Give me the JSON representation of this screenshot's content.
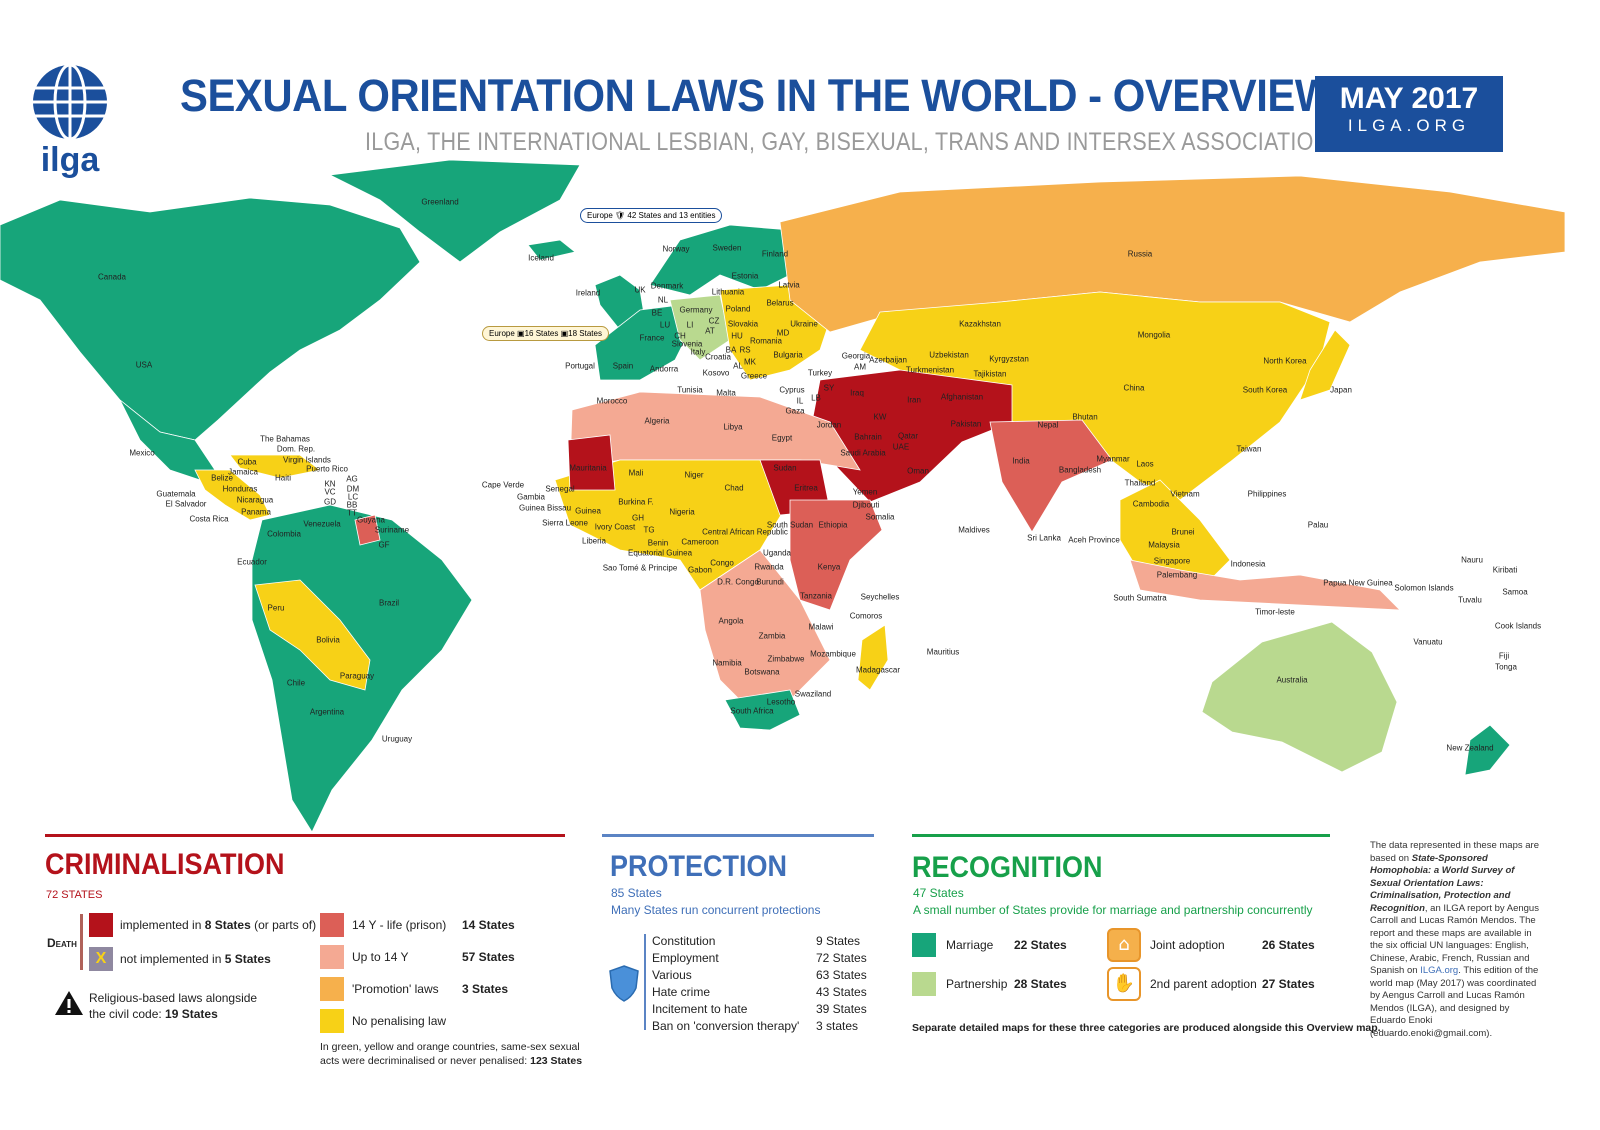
{
  "header": {
    "title": "SEXUAL ORIENTATION LAWS IN THE WORLD - OVERVIEW",
    "subtitle": "ILGA, THE INTERNATIONAL LESBIAN, GAY, BISEXUAL, TRANS AND INTERSEX ASSOCIATION",
    "date": "MAY 2017",
    "site": "ILGA.ORG",
    "logo_text": "ilga"
  },
  "colors": {
    "brand_blue": "#1b4f9c",
    "marriage": "#17a57a",
    "partnership": "#b9d98f",
    "no_penalising": "#f7d117",
    "promotion": "#f6b04c",
    "up_to_14": "#f4a993",
    "prison_14_life": "#dc5f57",
    "death": "#b4121b",
    "death_not_impl": "#8f88a0"
  },
  "callouts": {
    "europe_protection": "Europe 🛡 42 States and 13 entities",
    "europe_adoption": "Europe ▣16 States ▣18 States"
  },
  "map_labels": [
    "Greenland",
    "Canada",
    "USA",
    "Mexico",
    "Iceland",
    "Norway",
    "Sweden",
    "Finland",
    "Russia",
    "Estonia",
    "Latvia",
    "Lithuania",
    "Denmark",
    "UK",
    "Ireland",
    "NL",
    "BE",
    "LU",
    "Germany",
    "Poland",
    "Belarus",
    "Ukraine",
    "CZ",
    "Slovakia",
    "LI",
    "AT",
    "HU",
    "CH",
    "France",
    "Slovenia",
    "Romania",
    "MD",
    "Italy",
    "Croatia",
    "BA",
    "RS",
    "MK",
    "AL",
    "Kosovo",
    "Bulgaria",
    "Greece",
    "Spain",
    "Portugal",
    "Andorra",
    "Malta",
    "Turkey",
    "Georgia",
    "AM",
    "Azerbaijan",
    "Kazakhstan",
    "Uzbekistan",
    "Turkmenistan",
    "Kyrgyzstan",
    "Tajikistan",
    "Mongolia",
    "China",
    "North Korea",
    "South Korea",
    "Japan",
    "Cyprus",
    "SY",
    "LB",
    "IL",
    "Gaza",
    "Iraq",
    "Iran",
    "Afghanistan",
    "Pakistan",
    "KW",
    "Jordan",
    "Bahrain",
    "Qatar",
    "Saudi Arabia",
    "UAE",
    "Oman",
    "Yemen",
    "India",
    "Nepal",
    "Bhutan",
    "Bangladesh",
    "Myanmar",
    "Laos",
    "Thailand",
    "Vietnam",
    "Cambodia",
    "Taiwan",
    "Philippines",
    "Palau",
    "Maldives",
    "Sri Lanka",
    "Aceh Province",
    "Brunei",
    "Malaysia",
    "Singapore",
    "Palembang",
    "South Sumatra",
    "Indonesia",
    "Papua New Guinea",
    "Timor-leste",
    "Solomon Islands",
    "Nauru",
    "Kiribati",
    "Samoa",
    "Tuvalu",
    "Cook Islands",
    "Vanuatu",
    "Fiji",
    "Tonga",
    "Australia",
    "New Zealand",
    "Morocco",
    "Tunisia",
    "Algeria",
    "Libya",
    "Egypt",
    "Mauritania",
    "Mali",
    "Niger",
    "Chad",
    "Sudan",
    "Eritrea",
    "Djibouti",
    "Somalia",
    "Ethiopia",
    "Senegal",
    "Gambia",
    "Guinea Bissau",
    "Guinea",
    "Sierra Leone",
    "Liberia",
    "Ivory Coast",
    "Burkina F.",
    "GH",
    "TG",
    "Benin",
    "Nigeria",
    "Cameroon",
    "Central African Republic",
    "South Sudan",
    "Equatorial Guinea",
    "Sao Tomé & Principe",
    "Gabon",
    "Congo",
    "Uganda",
    "Kenya",
    "Rwanda",
    "Burundi",
    "D.R. Congo",
    "Tanzania",
    "Seychelles",
    "Comoros",
    "Angola",
    "Malawi",
    "Zambia",
    "Mozambique",
    "Madagascar",
    "Mauritius",
    "Zimbabwe",
    "Namibia",
    "Botswana",
    "Swaziland",
    "Lesotho",
    "South Africa",
    "Cape Verde",
    "The Bahamas",
    "Dom. Rep.",
    "Virgin Islands",
    "Puerto Rico",
    "Cuba",
    "Jamaica",
    "Haiti",
    "Belize",
    "AG",
    "DM",
    "LC",
    "BB",
    "TT",
    "KN",
    "VC",
    "GD",
    "Honduras",
    "Guatemala",
    "El Salvador",
    "Nicaragua",
    "Panama",
    "Costa Rica",
    "Venezuela",
    "Guyana",
    "Suriname",
    "GF",
    "Colombia",
    "Ecuador",
    "Brazil",
    "Peru",
    "Bolivia",
    "Paraguay",
    "Chile",
    "Argentina",
    "Uruguay"
  ],
  "criminalisation": {
    "title": "CRIMINALISATION",
    "count": "72 STATES",
    "death_label": "Death",
    "death_items": [
      {
        "pre": "implemented in ",
        "bold": "8 States",
        "post": " (or parts of)"
      },
      {
        "pre": "not implemented in ",
        "bold": "5 States",
        "post": ""
      }
    ],
    "religious": {
      "text": "Religious-based laws alongside",
      "text2": "the civil code: ",
      "bold": "19 States"
    },
    "levels": [
      {
        "label": "14 Y - life (prison)",
        "count": "14 States"
      },
      {
        "label": "Up to 14 Y",
        "count": "57 States"
      },
      {
        "label": "'Promotion' laws",
        "count": "3 States"
      },
      {
        "label": "No penalising law",
        "count": ""
      }
    ],
    "footnote": "In green, yellow and orange countries, same-sex sexual",
    "footnote2": "acts were decriminalised or never penalised: ",
    "footnote_bold": "123 States"
  },
  "protection": {
    "title": "PROTECTION",
    "count": "85 States",
    "subtitle": "Many States run concurrent protections",
    "items": [
      {
        "label": "Constitution",
        "count": "9 States"
      },
      {
        "label": "Employment",
        "count": "72 States"
      },
      {
        "label": "Various",
        "count": "63 States"
      },
      {
        "label": "Hate crime",
        "count": "43 States"
      },
      {
        "label": "Incitement to hate",
        "count": "39 States"
      },
      {
        "label": "Ban on 'conversion therapy'",
        "count": "3 states"
      }
    ]
  },
  "recognition": {
    "title": "RECOGNITION",
    "count": "47 States",
    "subtitle": "A small number of States provide for marriage and partnership concurrently",
    "items": [
      {
        "label": "Marriage",
        "count": "22 States"
      },
      {
        "label": "Partnership",
        "count": "28 States"
      },
      {
        "label": "Joint adoption",
        "count": "26 States"
      },
      {
        "label": "2nd parent adoption",
        "count": "27 States"
      }
    ],
    "footnote": "Separate detailed maps for these three categories are produced alongside this Overview map."
  },
  "note": {
    "p1": "The data represented in these maps are based on ",
    "p1_italic": "State-Sponsored Homophobia: a World Survey of Sexual Orientation Laws: Criminalisation, Protection and Recognition",
    "p2": ", an ILGA report by Aengus Carroll and Lucas Ramón Mendos. The report and these maps are available in the six official UN languages: English, Chinese, Arabic, French, Russian and Spanish on ",
    "link": "ILGA.org",
    "p3": ". This edition of the world map (May 2017) was coordinated by Aengus Carroll and Lucas Ramón Mendos (ILGA), and designed by Eduardo Enoki (eduardo.enoki@gmail.com)."
  }
}
